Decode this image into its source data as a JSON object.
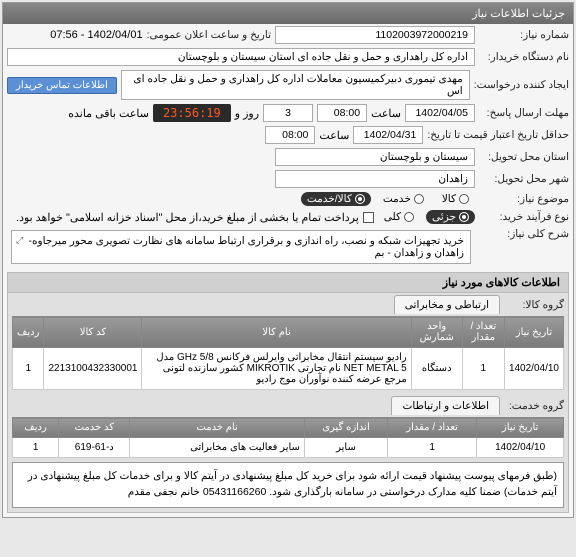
{
  "panel_title": "جزئیات اطلاعات نیاز",
  "fields": {
    "need_no_label": "شماره نیاز:",
    "need_no": "1102003972000219",
    "announce_label": "تاریخ و ساعت اعلان عمومی:",
    "announce": "1402/04/01 - 07:56",
    "buyer_label": "نام دستگاه خریدار:",
    "buyer": "اداره کل راهداری و حمل و نقل جاده ای استان سیستان و بلوچستان",
    "creator_label": "ایجاد کننده درخواست:",
    "creator": "مهدی تیموری دبیرکمیسیون معاملات اداره کل راهداری و حمل و نقل جاده ای اس",
    "contact_btn": "اطلاعات تماس خریدار",
    "deadline_label": "مهلت ارسال پاسخ:",
    "deadline_date": "1402/04/05",
    "time_label": "ساعت",
    "deadline_time": "08:00",
    "days": "3",
    "days_label": "روز و",
    "countdown": "23:56:19",
    "remaining": "ساعت باقی مانده",
    "validity_label": "حداقل تاریخ اعتبار قیمت تا تاریخ:",
    "validity_date": "1402/04/31",
    "validity_time": "08:00",
    "province_label": "استان محل تحویل:",
    "province": "سیستان و بلوچستان",
    "city_label": "شهر محل تحویل:",
    "city": "زاهدان",
    "need_type_label": "موضوع نیاز:",
    "purchase_type_label": "نوع فرآیند خرید:",
    "payment_note": "پرداخت تمام یا بخشی از مبلغ خرید،از محل \"اسناد خزانه اسلامی\" خواهد بود.",
    "desc_label": "شرح کلی نیاز:",
    "desc": "خرید تجهیزات شبکه و نصب، راه اندازی و برقراری ارتباط سامانه های نظارت تصویری محور میرجاوه- زاهدان و زاهدان - بم"
  },
  "radios": {
    "need_type": [
      {
        "label": "کالا",
        "selected": false
      },
      {
        "label": "خدمت",
        "selected": false
      },
      {
        "label": "کالا/خدمت",
        "selected": true
      }
    ],
    "purchase_type": [
      {
        "label": "جزئی",
        "selected": true
      },
      {
        "label": "کلی",
        "selected": false
      }
    ]
  },
  "goods_section_title": "اطلاعات کالاهای مورد نیاز",
  "goods_group_label": "گروه کالا:",
  "goods_group": "ارتباطی و مخابراتی",
  "goods_table": {
    "headers": [
      "تاریخ نیاز",
      "تعداد / مقدار",
      "واحد شمارش",
      "نام کالا",
      "کد کالا",
      "ردیف"
    ],
    "row": {
      "date": "1402/04/10",
      "qty": "1",
      "unit": "دستگاه",
      "name": "رادیو سیستم انتقال مخابراتی وایرلس فرکانس GHz 5/8 مدل NET METAL 5 نام تجارتی MIKROTIK کشور سازنده لتونی مرجع عرضه کننده نوآوران موج رادیو",
      "code": "2213100432330001",
      "idx": "1"
    }
  },
  "service_group_label": "گروه خدمت:",
  "service_tab1": "اطلاعات و ارتباطات",
  "service_table": {
    "headers": [
      "تاریخ نیاز",
      "تعداد / مقدار",
      "اندازه گیری",
      "نام خدمت",
      "کد خدمت",
      "ردیف"
    ],
    "row": {
      "date": "1402/04/10",
      "qty": "1",
      "measure": "سایر",
      "name": "سایر فعالیت های مخابراتی",
      "code": "د-61-619",
      "idx": "1"
    }
  },
  "note": "(طبق فرمهای پیوست پیشنهاد قیمت ارائه شود برای خرید کل مبلغ پیشنهادی در آیتم کالا و برای خدمات کل مبلغ پیشنهادی در آیتم خدمات) ضمنا کلیه مدارک درخواستی در سامانه بارگذاری شود. 05431166260 خانم نجفی مقدم"
}
